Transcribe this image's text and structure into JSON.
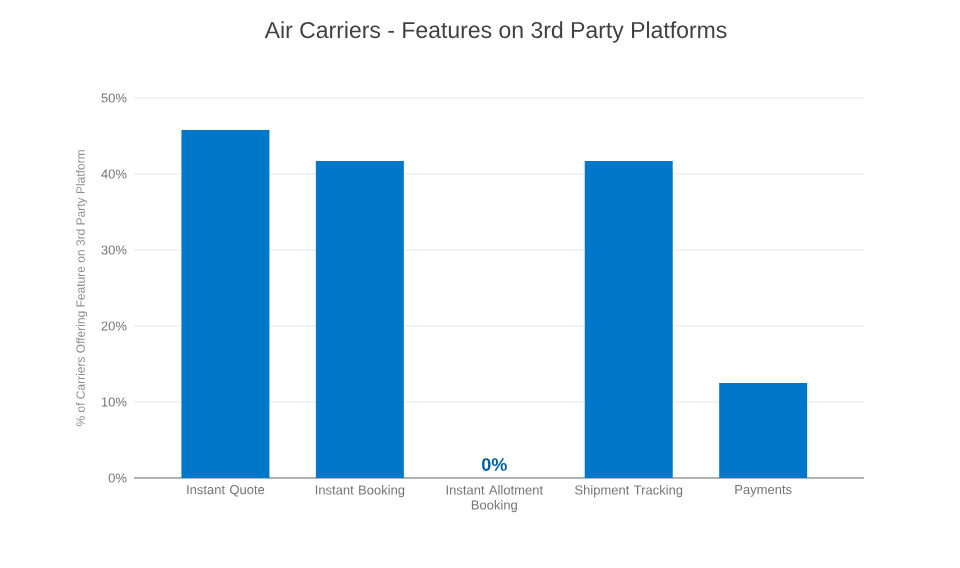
{
  "chart_data": {
    "type": "bar",
    "title": "Air Carriers - Features on 3rd Party Platforms",
    "ylabel": "% of Carriers Offering Feature on 3rd Party Platform",
    "categories": [
      "Instant Quote",
      "Instant Booking",
      "Instant Allotment Booking",
      "Shipment Tracking",
      "Payments"
    ],
    "values": [
      45.8,
      41.7,
      0,
      41.7,
      12.5
    ],
    "value_labels": [
      null,
      null,
      "0%",
      null,
      null
    ],
    "color": "#0077c8",
    "ylim": [
      0,
      50
    ],
    "yticks": [
      {
        "value": 0,
        "label": "0%"
      },
      {
        "value": 10,
        "label": "10%"
      },
      {
        "value": 20,
        "label": "20%"
      },
      {
        "value": 30,
        "label": "30%"
      },
      {
        "value": 40,
        "label": "40%"
      },
      {
        "value": 50,
        "label": "50%"
      }
    ],
    "grid": "y"
  }
}
